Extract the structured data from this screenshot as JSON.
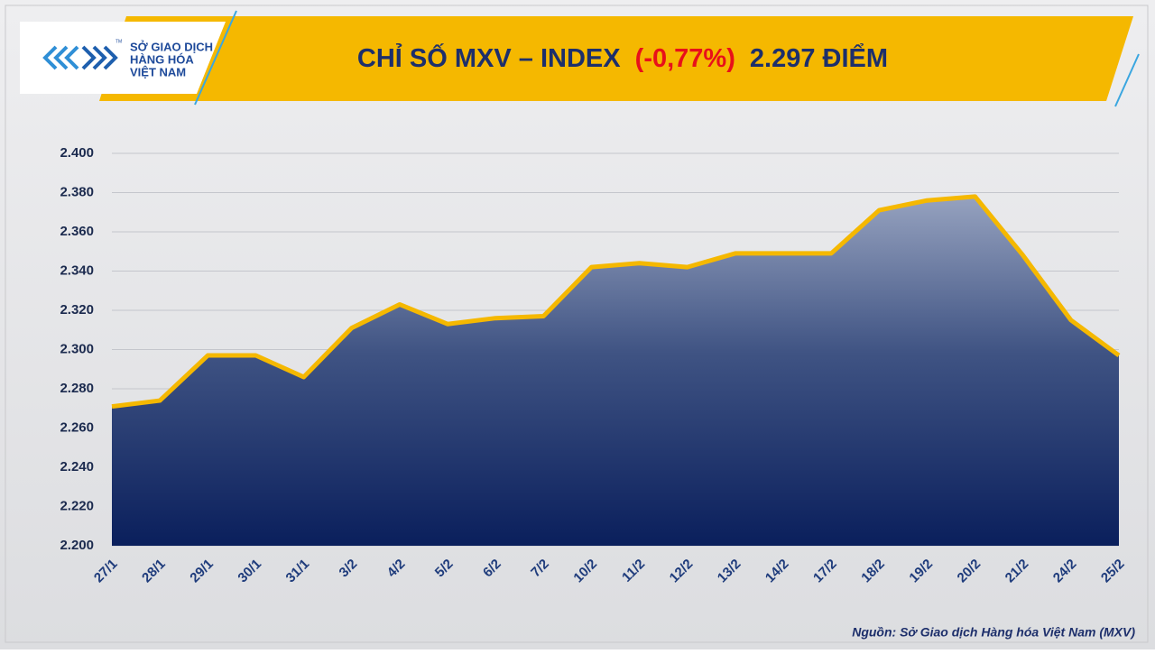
{
  "logo": {
    "line1": "SỞ GIAO DỊCH",
    "line2": "HÀNG HÓA",
    "line3": "VIỆT NAM",
    "mark": "TM"
  },
  "chart_data": {
    "type": "area",
    "title": "CHỈ SỐ MXV – INDEX",
    "title_change": "(-0,77%)",
    "title_value": "2.297 ĐIỂM",
    "source": "Nguồn: Sở Giao dịch Hàng hóa Việt Nam (MXV)",
    "categories": [
      "27/1",
      "28/1",
      "29/1",
      "30/1",
      "31/1",
      "3/2",
      "4/2",
      "5/2",
      "6/2",
      "7/2",
      "10/2",
      "11/2",
      "12/2",
      "13/2",
      "14/2",
      "17/2",
      "18/2",
      "19/2",
      "20/2",
      "21/2",
      "24/2",
      "25/2"
    ],
    "values": [
      2271,
      2274,
      2297,
      2297,
      2286,
      2311,
      2323,
      2313,
      2316,
      2317,
      2342,
      2344,
      2342,
      2349,
      2349,
      2349,
      2371,
      2376,
      2378,
      2348,
      2315,
      2297
    ],
    "line_color": "#f5b800",
    "ylim": [
      2200,
      2400
    ],
    "yticks": [
      {
        "value": 2200,
        "label": "2.200"
      },
      {
        "value": 2220,
        "label": "2.220"
      },
      {
        "value": 2240,
        "label": "2.240"
      },
      {
        "value": 2260,
        "label": "2.260"
      },
      {
        "value": 2280,
        "label": "2.280"
      },
      {
        "value": 2300,
        "label": "2.300"
      },
      {
        "value": 2320,
        "label": "2.320"
      },
      {
        "value": 2340,
        "label": "2.340"
      },
      {
        "value": 2360,
        "label": "2.360"
      },
      {
        "value": 2380,
        "label": "2.380"
      },
      {
        "value": 2400,
        "label": "2.400"
      }
    ],
    "grid": true
  }
}
